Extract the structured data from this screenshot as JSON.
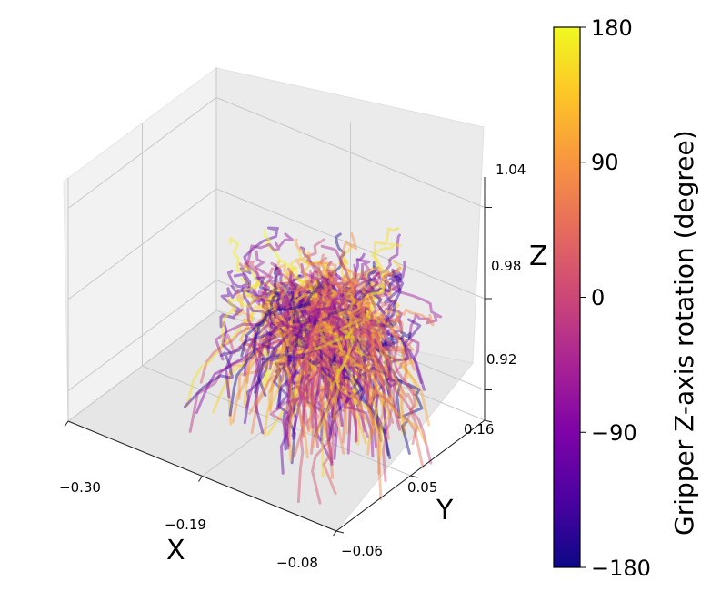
{
  "chart_data": {
    "type": "3d-line",
    "description_type": "3d trajectories colored by gripper rotation",
    "x_axis": {
      "label": "X",
      "ticks": [
        "−0.30",
        "−0.19",
        "−0.08"
      ],
      "range": [
        -0.3,
        -0.08
      ]
    },
    "y_axis": {
      "label": "Y",
      "ticks": [
        "−0.06",
        "0.05",
        "0.16"
      ],
      "range": [
        -0.06,
        0.16
      ]
    },
    "z_axis": {
      "label": "Z",
      "ticks": [
        "0.92",
        "0.98",
        "1.04"
      ],
      "range": [
        0.9,
        1.06
      ]
    },
    "colorbar": {
      "label": "Gripper Z-axis rotation (degree)",
      "ticks": [
        "180",
        "90",
        "0",
        "−90",
        "−180"
      ],
      "range": [
        -180,
        180
      ],
      "colormap": "plasma"
    },
    "trajectory_count": 220,
    "convergence_point": {
      "x": -0.15,
      "y": 0.05,
      "z": 1.0
    },
    "line_opacity": 0.45,
    "grid": true
  }
}
